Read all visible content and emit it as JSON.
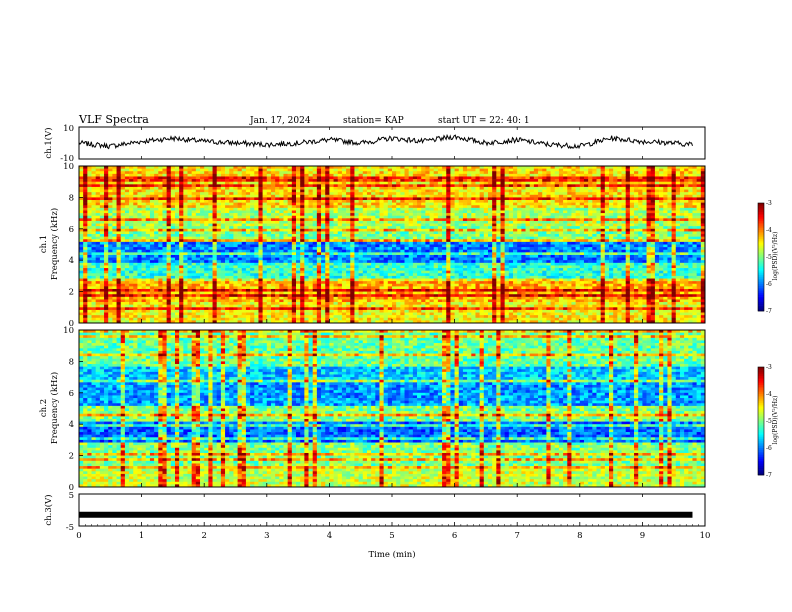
{
  "header": {
    "title": "VLF Spectra",
    "date": "Jan. 17, 2024",
    "station": "station= KAP",
    "start": "start UT =  22: 40: 1"
  },
  "chart_data": [
    {
      "type": "line",
      "panel": "ch1-waveform",
      "ylabel": "ch.1(V)",
      "xlim": [
        0,
        10
      ],
      "ylim": [
        -10,
        10
      ],
      "yticks": [
        "10",
        "-10"
      ],
      "note": "dense noisy waveform oscillating roughly between -4 and +6 V",
      "x": [
        0,
        0.5,
        1,
        1.5,
        2,
        2.5,
        3,
        3.5,
        4,
        4.5,
        5,
        5.5,
        6,
        6.5,
        7,
        7.5,
        8,
        8.5,
        9,
        9.5,
        9.8
      ],
      "y": [
        0,
        -2,
        1,
        3,
        1,
        0,
        -1,
        0,
        2,
        0,
        3,
        1,
        4,
        0,
        2,
        -1,
        -2,
        3,
        1,
        0,
        -1
      ]
    },
    {
      "type": "heatmap",
      "panel": "ch1-spectrogram",
      "ylabel": "Frequency (kHz)",
      "channel_label": "ch.1",
      "xlim": [
        0,
        10
      ],
      "ylim": [
        0,
        10
      ],
      "yticks": [
        "0",
        "2",
        "4",
        "6",
        "8",
        "10"
      ],
      "colorbar": {
        "label": "log(PSD)(V²/Hz)",
        "range": [
          -7,
          -3
        ],
        "ticks": [
          "-3",
          "-4",
          "-5",
          "-6",
          "-7"
        ]
      },
      "frequency_bands_khz": [
        {
          "from": 0,
          "to": 1.4,
          "level": -4.5
        },
        {
          "from": 1.4,
          "to": 2.6,
          "level": -4.2
        },
        {
          "from": 2.6,
          "to": 3.8,
          "level": -5.3
        },
        {
          "from": 3.8,
          "to": 5.2,
          "level": -6.0
        },
        {
          "from": 5.2,
          "to": 6.2,
          "level": -5.0
        },
        {
          "from": 6.2,
          "to": 7.4,
          "level": -4.8
        },
        {
          "from": 7.4,
          "to": 10,
          "level": -4.4
        }
      ]
    },
    {
      "type": "heatmap",
      "panel": "ch2-spectrogram",
      "ylabel": "Frequency (kHz)",
      "channel_label": "ch.2",
      "xlim": [
        0,
        10
      ],
      "ylim": [
        0,
        10
      ],
      "yticks": [
        "0",
        "2",
        "4",
        "6",
        "8",
        "10"
      ],
      "colorbar": {
        "label": "log(PSD)(V²/Hz)",
        "range": [
          -7,
          -3
        ],
        "ticks": [
          "-3",
          "-4",
          "-5",
          "-6",
          "-7"
        ]
      },
      "frequency_bands_khz": [
        {
          "from": 0,
          "to": 1.2,
          "level": -4.7
        },
        {
          "from": 1.2,
          "to": 2.8,
          "level": -5.0
        },
        {
          "from": 2.8,
          "to": 4.2,
          "level": -6.1
        },
        {
          "from": 4.2,
          "to": 5.2,
          "level": -5.0
        },
        {
          "from": 5.2,
          "to": 6.6,
          "level": -5.9
        },
        {
          "from": 6.6,
          "to": 7.6,
          "level": -5.7
        },
        {
          "from": 7.6,
          "to": 10,
          "level": -5.1
        }
      ]
    },
    {
      "type": "line",
      "panel": "ch3-waveform",
      "ylabel": "ch.3(V)",
      "xlabel": "Time (min)",
      "xlim": [
        0,
        10
      ],
      "ylim": [
        -5,
        5
      ],
      "yticks": [
        "5",
        "-5"
      ],
      "xticks": [
        "0",
        "1",
        "2",
        "3",
        "4",
        "5",
        "6",
        "7",
        "8",
        "9",
        "10"
      ],
      "x": [
        0,
        9.8
      ],
      "y": [
        -1.5,
        -1.5
      ]
    }
  ]
}
